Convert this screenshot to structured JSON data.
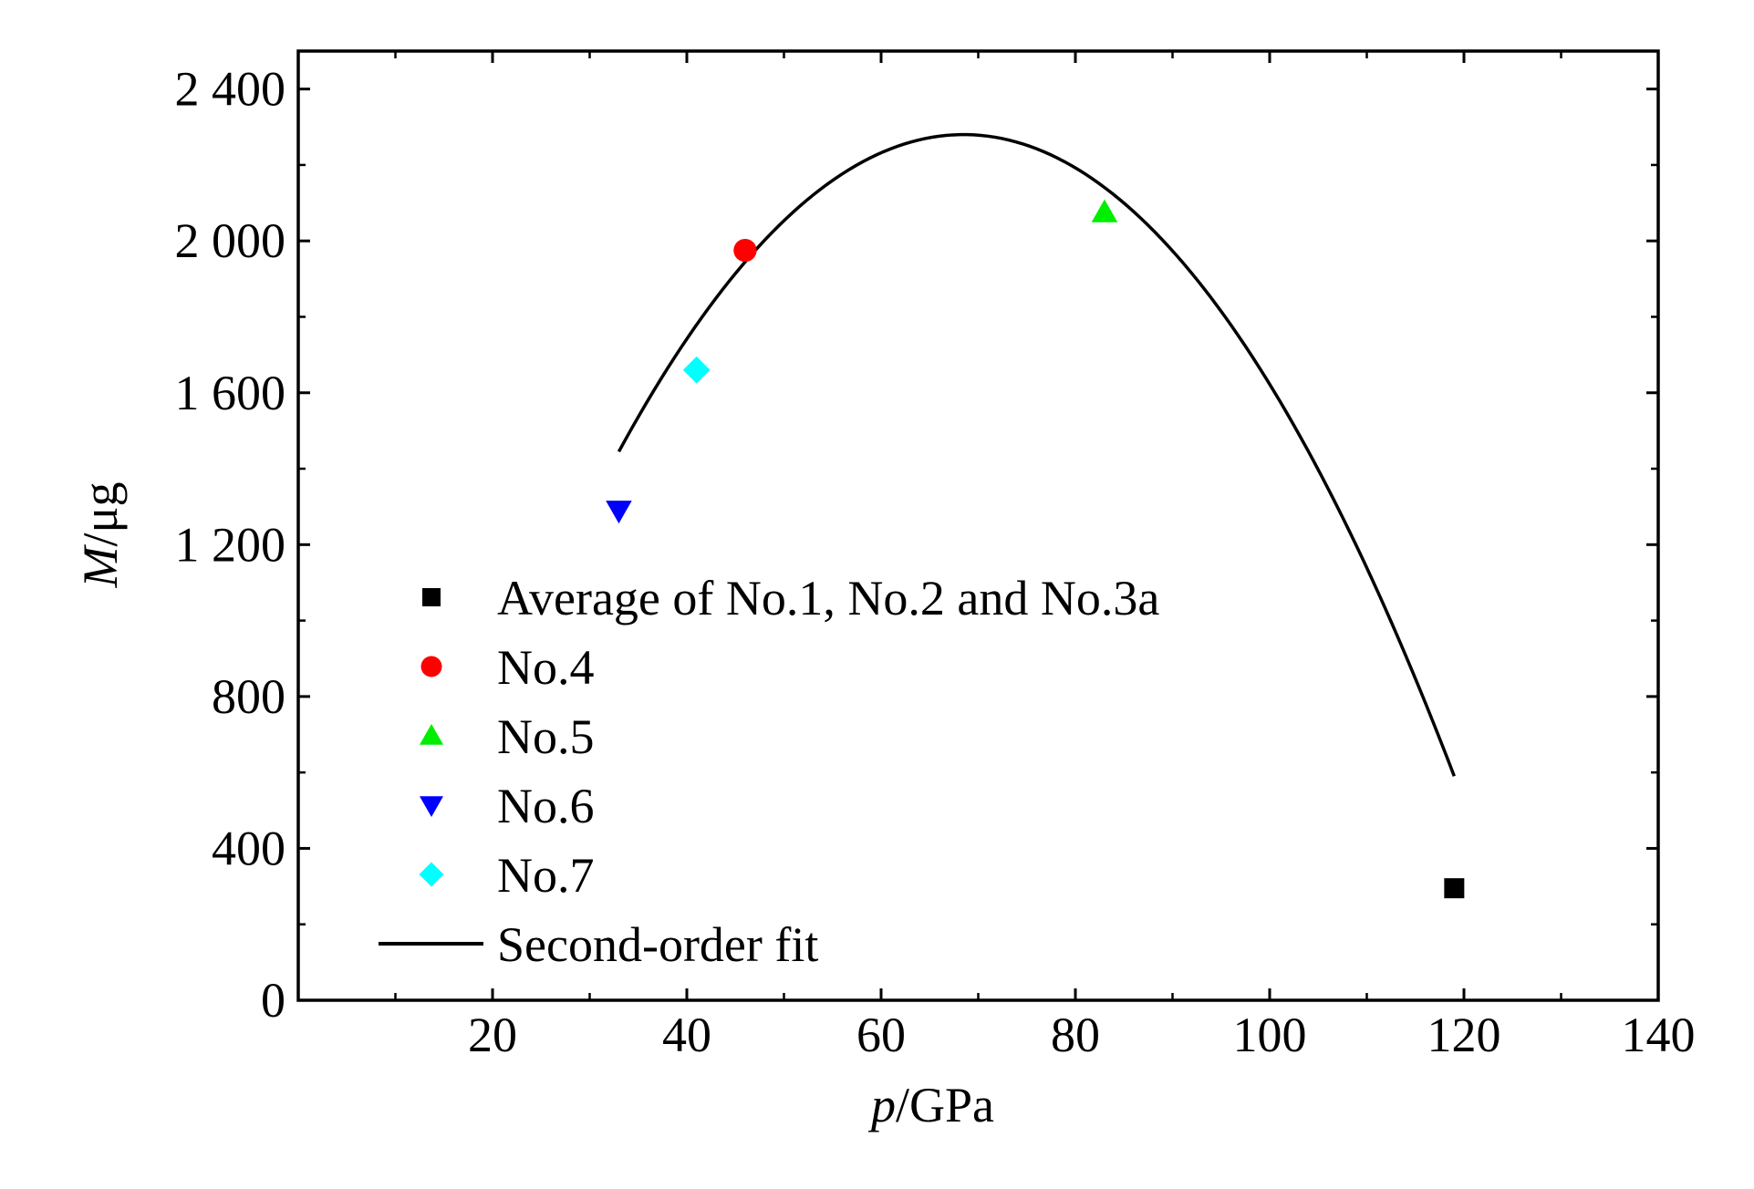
{
  "chart_data": {
    "type": "scatter",
    "title": "",
    "xlabel": {
      "var": "p",
      "unit": "/GPa"
    },
    "ylabel": {
      "var": "M",
      "unit": "/μg"
    },
    "xlim": [
      0,
      140
    ],
    "ylim": [
      0,
      2500
    ],
    "x_ticks": [
      20,
      40,
      60,
      80,
      100,
      120,
      140
    ],
    "x_tick_labels": [
      "20",
      "40",
      "60",
      "80",
      "100",
      "120",
      "140"
    ],
    "x_minor_ticks": [
      10,
      30,
      50,
      70,
      90,
      110,
      130
    ],
    "y_ticks": [
      0,
      400,
      800,
      1200,
      1600,
      2000,
      2400
    ],
    "y_tick_labels": [
      "0",
      "400",
      "800",
      "1 200",
      "1 600",
      "2 000",
      "2 400"
    ],
    "y_minor_ticks": [
      200,
      600,
      1000,
      1400,
      1800,
      2200
    ],
    "grid": false,
    "legend_position": "left",
    "series": [
      {
        "name": "Average of No.1, No.2 and No.3a",
        "marker": "square",
        "color": "#000000",
        "points": [
          [
            119,
            295
          ]
        ]
      },
      {
        "name": "No.4",
        "marker": "circle",
        "color": "#ff0000",
        "points": [
          [
            46,
            1975
          ]
        ]
      },
      {
        "name": "No.5",
        "marker": "triangle-up",
        "color": "#00ee00",
        "points": [
          [
            83,
            2075
          ]
        ]
      },
      {
        "name": "No.6",
        "marker": "triangle-down",
        "color": "#0000ff",
        "points": [
          [
            33,
            1290
          ]
        ]
      },
      {
        "name": "No.7",
        "marker": "diamond",
        "color": "#00ffff",
        "points": [
          [
            41,
            1660
          ]
        ]
      }
    ],
    "fit": {
      "name": "Second-order fit",
      "type": "polynomial-2",
      "color": "#000000",
      "vertex": [
        68.5,
        2280
      ],
      "curvature": -0.6626,
      "x_range": [
        33,
        119
      ]
    }
  }
}
